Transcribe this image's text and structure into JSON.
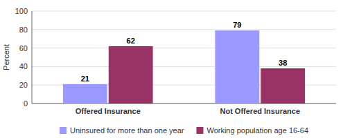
{
  "chart_data": {
    "type": "bar",
    "categories": [
      "Offered Insurance",
      "Not Offered Insurance"
    ],
    "series": [
      {
        "name": "Uninsured for more than one year",
        "color": "#9999ff",
        "values": [
          21,
          79
        ]
      },
      {
        "name": "Working population age 16-64",
        "color": "#993366",
        "values": [
          62,
          38
        ]
      }
    ],
    "ylabel": "Percent",
    "ylim": [
      0,
      100
    ],
    "yticks": [
      0,
      20,
      40,
      60,
      80,
      100
    ],
    "grid": true,
    "legend": "bottom",
    "data_labels": true
  }
}
